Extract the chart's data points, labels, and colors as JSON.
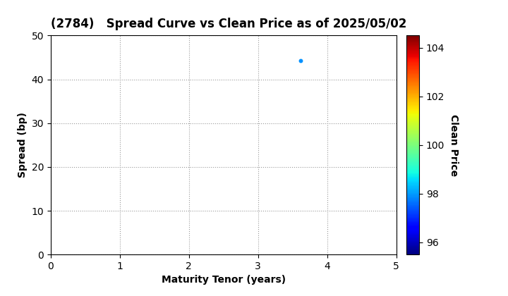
{
  "title": "(2784)   Spread Curve vs Clean Price as of 2025/05/02",
  "xlabel": "Maturity Tenor (years)",
  "ylabel": "Spread (bp)",
  "colorbar_label": "Clean Price",
  "xlim": [
    0,
    5
  ],
  "ylim": [
    0,
    50
  ],
  "xticks": [
    0,
    1,
    2,
    3,
    4,
    5
  ],
  "yticks": [
    0,
    10,
    20,
    30,
    40,
    50
  ],
  "scatter_x": [
    3.62
  ],
  "scatter_y": [
    44.2
  ],
  "scatter_color_value": [
    97.9
  ],
  "cmap": "jet",
  "clim": [
    95.5,
    104.5
  ],
  "colorbar_ticks": [
    96,
    98,
    100,
    102,
    104
  ],
  "scatter_size": 18,
  "background_color": "#ffffff",
  "title_fontsize": 12,
  "axis_fontsize": 10,
  "tick_fontsize": 10,
  "grid_color": "#999999",
  "grid_linestyle": "dotted",
  "grid_linewidth": 0.8
}
